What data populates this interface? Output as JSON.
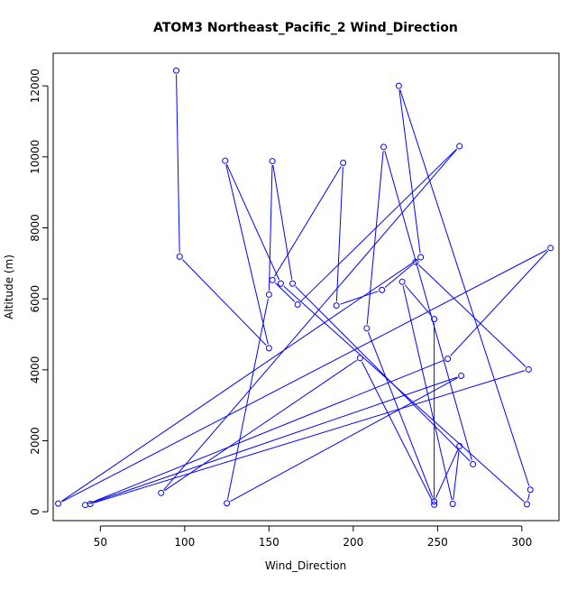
{
  "chart_data": {
    "type": "line",
    "title": "ATOM3 Northeast_Pacific_2 Wind_Direction",
    "xlabel": "Wind_Direction",
    "ylabel": "Altitude (m)",
    "xlim": [
      22,
      322
    ],
    "ylim": [
      -250,
      12920
    ],
    "x_ticks": [
      50,
      100,
      150,
      200,
      250,
      300
    ],
    "y_ticks": [
      0,
      2000,
      4000,
      6000,
      8000,
      10000,
      12000
    ],
    "grid": false,
    "series": [
      {
        "color": "#0000ff",
        "marker": "open-circle",
        "points": [
          {
            "x": 95,
            "y": 12430
          },
          {
            "x": 97,
            "y": 7190
          },
          {
            "x": 150,
            "y": 4610
          },
          {
            "x": 124,
            "y": 9890
          },
          {
            "x": 157,
            "y": 6430
          },
          {
            "x": 303,
            "y": 210
          },
          {
            "x": 305,
            "y": 620
          },
          {
            "x": 227,
            "y": 12000
          },
          {
            "x": 240,
            "y": 7170
          },
          {
            "x": 25,
            "y": 230
          },
          {
            "x": 317,
            "y": 7430
          },
          {
            "x": 256,
            "y": 4310
          },
          {
            "x": 41,
            "y": 190
          },
          {
            "x": 264,
            "y": 3830
          },
          {
            "x": 125,
            "y": 240
          },
          {
            "x": 150,
            "y": 6120
          },
          {
            "x": 152,
            "y": 9880
          },
          {
            "x": 164,
            "y": 6430
          },
          {
            "x": 271,
            "y": 1340
          },
          {
            "x": 218,
            "y": 10280
          },
          {
            "x": 208,
            "y": 5170
          },
          {
            "x": 248,
            "y": 290
          },
          {
            "x": 263,
            "y": 1850
          },
          {
            "x": 259,
            "y": 220
          },
          {
            "x": 229,
            "y": 6480
          },
          {
            "x": 248,
            "y": 5430
          },
          {
            "x": 248,
            "y": 200
          },
          {
            "x": 204,
            "y": 4330
          },
          {
            "x": 86,
            "y": 530
          },
          {
            "x": 263,
            "y": 10300
          },
          {
            "x": 167,
            "y": 5840
          },
          {
            "x": 152,
            "y": 6530
          },
          {
            "x": 194,
            "y": 9830
          },
          {
            "x": 190,
            "y": 5810
          },
          {
            "x": 217,
            "y": 6250
          },
          {
            "x": 237,
            "y": 7040
          },
          {
            "x": 304,
            "y": 4010
          },
          {
            "x": 44,
            "y": 220
          }
        ]
      }
    ]
  }
}
